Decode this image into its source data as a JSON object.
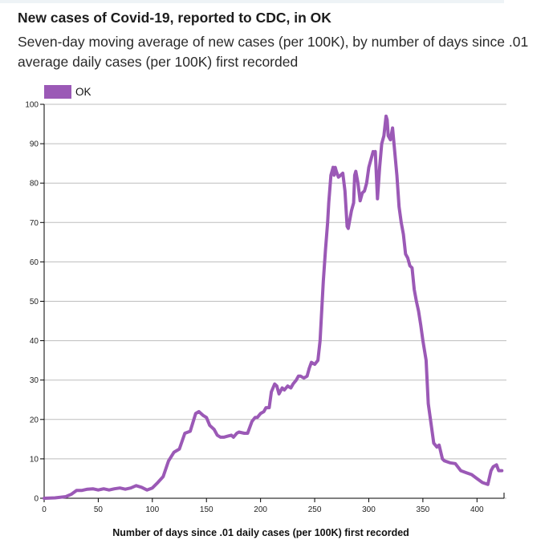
{
  "title": "New cases of Covid-19, reported to CDC, in OK",
  "subtitle": "Seven-day moving average of new cases (per 100K), by number of days since .01 average daily cases (per 100K) first recorded",
  "colors": {
    "series": "#9b59b6",
    "grid": "#bdbdbd",
    "axis": "#000000"
  },
  "chart_data": {
    "type": "line",
    "title": "New cases of Covid-19, reported to CDC, in OK",
    "xlabel": "Number of days since .01 daily cases (per 100K) first recorded",
    "ylabel": "",
    "xlim": [
      0,
      425
    ],
    "ylim": [
      0,
      100
    ],
    "xticks": [
      0,
      50,
      100,
      150,
      200,
      250,
      300,
      350,
      400
    ],
    "yticks": [
      0,
      10,
      20,
      30,
      40,
      50,
      60,
      70,
      80,
      90,
      100
    ],
    "grid": true,
    "legend": "top-left",
    "series": [
      {
        "name": "OK",
        "x": [
          0,
          10,
          20,
          25,
          30,
          35,
          40,
          45,
          50,
          55,
          60,
          65,
          70,
          75,
          80,
          85,
          90,
          95,
          100,
          105,
          110,
          115,
          120,
          125,
          130,
          135,
          140,
          143,
          147,
          150,
          153,
          157,
          160,
          163,
          166,
          170,
          173,
          175,
          178,
          180,
          185,
          188,
          192,
          195,
          197,
          200,
          203,
          205,
          208,
          210,
          213,
          215,
          217,
          220,
          222,
          225,
          228,
          230,
          233,
          235,
          237,
          240,
          243,
          245,
          247,
          250,
          253,
          255,
          258,
          260,
          262,
          263,
          265,
          267,
          268,
          269,
          270,
          272,
          274,
          276,
          278,
          280,
          281,
          282,
          284,
          286,
          287,
          288,
          290,
          292,
          294,
          296,
          298,
          300,
          302,
          304,
          305,
          306,
          308,
          310,
          312,
          314,
          316,
          317,
          318,
          320,
          322,
          324,
          326,
          328,
          330,
          332,
          334,
          336,
          338,
          340,
          342,
          344,
          346,
          348,
          350,
          353,
          355,
          358,
          360,
          363,
          365,
          368,
          370,
          375,
          380,
          385,
          390,
          395,
          400,
          405,
          410,
          413,
          415,
          418,
          420,
          423
        ],
        "y": [
          0,
          0.1,
          0.4,
          1,
          2,
          2,
          2.3,
          2.4,
          2.1,
          2.4,
          2.1,
          2.4,
          2.6,
          2.3,
          2.6,
          3.2,
          2.8,
          2.1,
          2.6,
          4,
          5.5,
          9.5,
          11.7,
          12.5,
          16.5,
          17,
          21.5,
          22,
          21,
          20.5,
          18.5,
          17.5,
          16,
          15.5,
          15.5,
          15.8,
          16,
          15.5,
          16.5,
          16.8,
          16.5,
          16.5,
          19.5,
          20.5,
          20.5,
          21.5,
          22,
          23,
          23,
          27,
          29,
          28.5,
          26.5,
          28,
          27.5,
          28.5,
          28,
          29,
          30,
          31,
          31,
          30.5,
          31,
          33,
          34.5,
          34,
          35,
          40,
          55,
          63,
          70,
          75,
          82,
          84,
          82,
          84,
          83,
          81.5,
          82,
          82.5,
          78,
          69,
          68.5,
          70,
          73,
          75,
          82,
          83,
          80,
          75.5,
          77.5,
          78,
          80,
          84,
          86,
          88,
          87.5,
          88,
          76,
          84,
          90,
          92,
          97,
          96,
          92,
          91,
          94,
          88,
          82,
          74,
          70,
          67,
          62,
          61,
          59,
          58.5,
          53,
          50,
          47.5,
          44,
          40,
          35,
          24,
          18,
          14,
          13,
          13.5,
          10,
          9.5,
          9,
          8.8,
          7,
          6.5,
          6,
          5,
          4,
          3.5,
          7,
          8,
          8.5,
          7,
          7
        ]
      }
    ]
  }
}
